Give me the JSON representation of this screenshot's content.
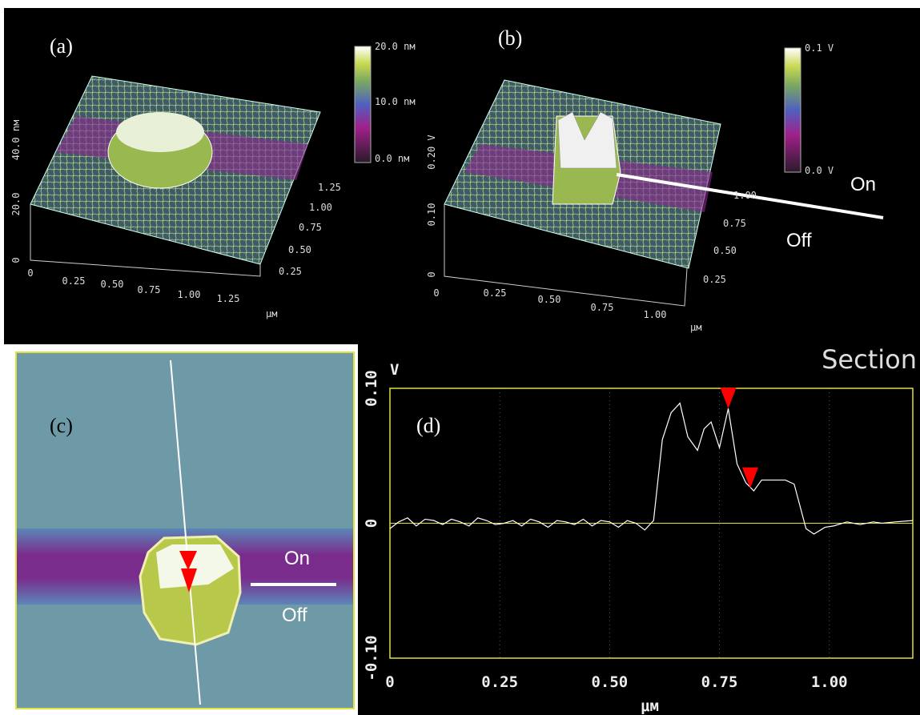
{
  "panels": {
    "a": {
      "label": "(a)",
      "colorbar": [
        "20.0 nм",
        "10.0 nм",
        "0.0 nм"
      ],
      "z_ticks": [
        "40.0 nм",
        "20.0",
        "0"
      ],
      "x_ticks": [
        "0",
        "0.25",
        "0.50",
        "0.75",
        "1.00",
        "1.25"
      ],
      "y_ticks": [
        "0.25",
        "0.50",
        "0.75",
        "1.00",
        "1.25"
      ],
      "unit": "μм"
    },
    "b": {
      "label": "(b)",
      "colorbar": [
        "0.1 V",
        "0.0 V"
      ],
      "z_ticks": [
        "0.20 V",
        "0.10",
        "0"
      ],
      "x_ticks": [
        "0",
        "0.25",
        "0.50",
        "0.75",
        "1.00"
      ],
      "y_ticks": [
        "0.25",
        "0.50",
        "0.75",
        "1.00"
      ],
      "unit": "μм",
      "on": "On",
      "off": "Off"
    },
    "c": {
      "label": "(c)",
      "on": "On",
      "off": "Off"
    }
  },
  "chart_data": [
    {
      "type": "line",
      "title": "Section",
      "panel_label": "(d)",
      "y_label": "V",
      "x_label": "μм",
      "color": "#ffffff",
      "x": [
        0,
        0.02,
        0.04,
        0.06,
        0.08,
        0.1,
        0.12,
        0.14,
        0.16,
        0.18,
        0.2,
        0.22,
        0.24,
        0.26,
        0.28,
        0.3,
        0.32,
        0.34,
        0.36,
        0.38,
        0.4,
        0.42,
        0.44,
        0.46,
        0.48,
        0.5,
        0.52,
        0.54,
        0.56,
        0.58,
        0.6,
        0.62,
        0.64,
        0.66,
        0.678,
        0.7,
        0.715,
        0.731,
        0.75,
        0.77,
        0.79,
        0.81,
        0.828,
        0.846,
        0.87,
        0.9,
        0.92,
        0.947,
        0.965,
        0.99,
        1.01,
        1.04,
        1.07,
        1.1,
        1.12,
        1.15,
        1.19
      ],
      "values": [
        -0.004,
        0.001,
        0.004,
        -0.002,
        0.003,
        0.002,
        -0.001,
        0.003,
        0.001,
        -0.002,
        0.004,
        0.002,
        -0.001,
        0.0,
        0.002,
        -0.002,
        0.003,
        0.001,
        -0.003,
        0.002,
        0.001,
        -0.001,
        0.003,
        -0.002,
        0.002,
        0.001,
        -0.003,
        0.002,
        0.0,
        -0.005,
        0.002,
        0.062,
        0.082,
        0.089,
        0.064,
        0.054,
        0.07,
        0.075,
        0.056,
        0.085,
        0.044,
        0.03,
        0.024,
        0.032,
        0.032,
        0.032,
        0.029,
        -0.004,
        -0.008,
        -0.003,
        -0.002,
        0.001,
        -0.001,
        0.001,
        0.0,
        0.001,
        0.002
      ],
      "markers": {
        "x": [
          0.77,
          0.82
        ],
        "y": [
          0.085,
          0.026
        ],
        "color": "#ff0000"
      },
      "xlim": [
        0,
        1.19
      ],
      "ylim": [
        -0.1,
        0.1
      ],
      "xticks": [
        0,
        0.25,
        {
          "value": 0.5,
          "label": "0.50"
        },
        0.75,
        {
          "value": 1,
          "label": "1.00"
        }
      ],
      "yticks": [
        {
          "value": -0.1,
          "label": "-0.10"
        },
        0,
        {
          "value": 0.1,
          "label": "0.10"
        }
      ],
      "grid": true
    }
  ]
}
